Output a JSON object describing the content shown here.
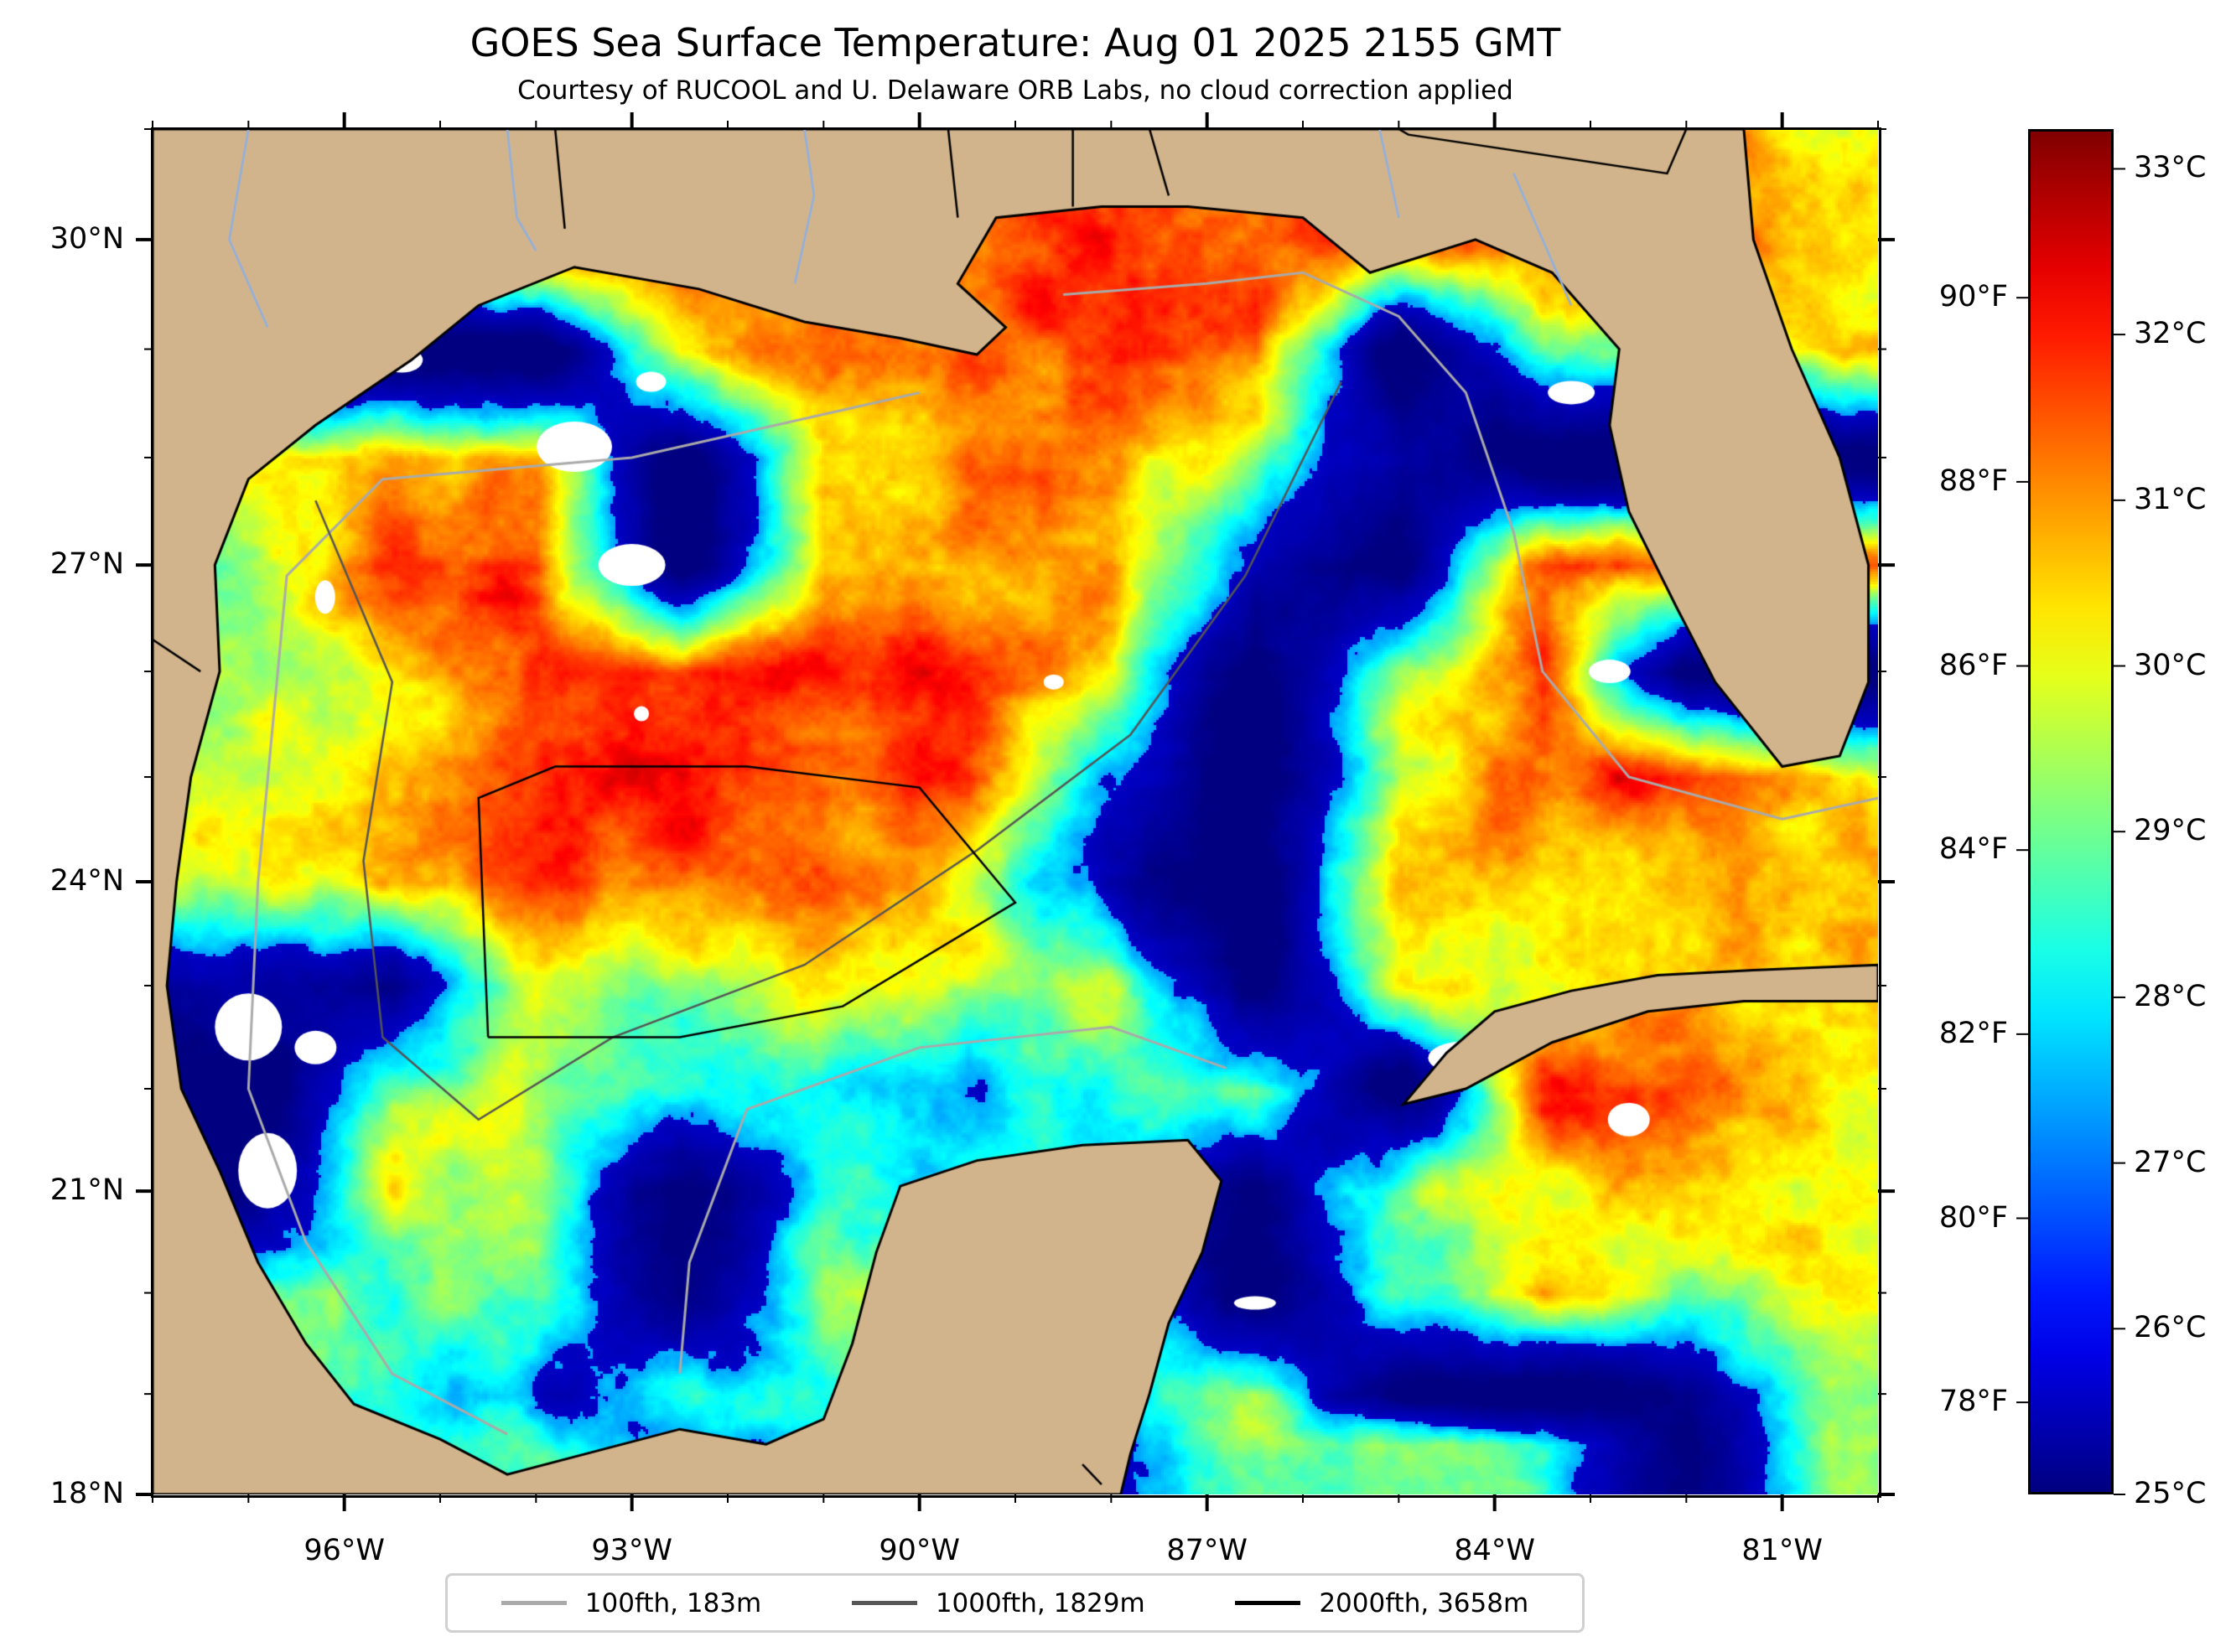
{
  "chart_data": {
    "type": "heatmap",
    "title": "GOES Sea Surface Temperature: Aug 01 2025 2155 GMT",
    "subtitle": "Courtesy of RUCOOL and U. Delaware ORB Labs, no cloud correction applied",
    "projection": "mercator",
    "lon_range": [
      -98,
      -80
    ],
    "lat_range": [
      18,
      31
    ],
    "x_ticks": [
      {
        "value": -96,
        "label": "96°W"
      },
      {
        "value": -93,
        "label": "93°W"
      },
      {
        "value": -90,
        "label": "90°W"
      },
      {
        "value": -87,
        "label": "87°W"
      },
      {
        "value": -84,
        "label": "84°W"
      },
      {
        "value": -81,
        "label": "81°W"
      }
    ],
    "y_ticks": [
      {
        "value": 30,
        "label": "30°N"
      },
      {
        "value": 27,
        "label": "27°N"
      },
      {
        "value": 24,
        "label": "24°N"
      },
      {
        "value": 21,
        "label": "21°N"
      },
      {
        "value": 18,
        "label": "18°N"
      }
    ],
    "colorbar": {
      "colormap": "jet",
      "range_c": [
        25,
        33.24
      ],
      "celsius_ticks": [
        {
          "value": 33,
          "label": "33°C"
        },
        {
          "value": 32,
          "label": "32°C"
        },
        {
          "value": 31,
          "label": "31°C"
        },
        {
          "value": 30,
          "label": "30°C"
        },
        {
          "value": 29,
          "label": "29°C"
        },
        {
          "value": 28,
          "label": "28°C"
        },
        {
          "value": 27,
          "label": "27°C"
        },
        {
          "value": 26,
          "label": "26°C"
        },
        {
          "value": 25,
          "label": "25°C"
        }
      ],
      "fahrenheit_ticks": [
        {
          "value": 90,
          "label": "90°F"
        },
        {
          "value": 88,
          "label": "88°F"
        },
        {
          "value": 86,
          "label": "86°F"
        },
        {
          "value": 84,
          "label": "84°F"
        },
        {
          "value": 82,
          "label": "82°F"
        },
        {
          "value": 80,
          "label": "80°F"
        },
        {
          "value": 78,
          "label": "78°F"
        }
      ]
    },
    "legend": {
      "placement": "bottom-center",
      "entries": [
        {
          "label": "100fth, 183m",
          "color": "#aaaaaa"
        },
        {
          "label": "1000fth, 1829m",
          "color": "#555555"
        },
        {
          "label": "2000fth, 3658m",
          "color": "#000000"
        }
      ]
    },
    "colors": {
      "land": "#d2b48c",
      "no_data": "#ffffff",
      "rivers": "#8fb0e0"
    },
    "sst_grid": {
      "units": "°C (null = land, \"cloud\" = no data)",
      "lons": [
        -97,
        -95.5,
        -94,
        -92.5,
        -91,
        -89.5,
        -88,
        -86.5,
        -85,
        -83.5,
        -82,
        -80.5
      ],
      "lats": [
        30,
        29,
        28,
        27,
        26,
        25,
        24,
        23,
        22,
        21,
        20,
        19,
        18.5
      ],
      "values": [
        [
          null,
          null,
          null,
          null,
          null,
          null,
          32.8,
          32.5,
          null,
          null,
          null,
          31
        ],
        [
          null,
          null,
          25,
          31.5,
          32,
          32,
          33,
          32.5,
          25,
          30,
          null,
          31.5
        ],
        [
          31,
          32,
          31.5,
          "cloud",
          31.5,
          32,
          32,
          30,
          27,
          25,
          null,
          null
        ],
        [
          30,
          33,
          32.5,
          "cloud",
          32,
          31.5,
          32,
          28,
          25,
          32.5,
          null,
          null
        ],
        [
          30.5,
          31,
          33,
          33,
          33,
          33,
          31,
          25,
          30,
          32.5,
          25,
          null
        ],
        [
          31,
          31.5,
          32.5,
          33,
          32.5,
          32.5,
          28,
          25,
          31,
          32.5,
          33,
          31
        ],
        [
          30.5,
          31.5,
          32.5,
          32.5,
          32.5,
          31,
          27,
          25,
          31.5,
          31.5,
          31.5,
          31.5
        ],
        [
          27,
          26,
          31,
          30,
          31,
          30.5,
          30.5,
          25,
          31,
          31,
          31.5,
          null
        ],
        [
          25,
          30,
          30.5,
          29,
          29,
          28.5,
          29.5,
          30,
          "cloud",
          33,
          33,
          31
        ],
        [
          26,
          31,
          30,
          25,
          29,
          null,
          null,
          26,
          30,
          31,
          31.5,
          31
        ],
        [
          30,
          29.5,
          30,
          25.5,
          30.5,
          null,
          null,
          25,
          29.5,
          31.5,
          30,
          31
        ],
        [
          null,
          29.5,
          28,
          29,
          null,
          null,
          null,
          30,
          25,
          25,
          26,
          30
        ],
        [
          null,
          null,
          29.5,
          28,
          null,
          null,
          null,
          30,
          30,
          29.5,
          25.5,
          30
        ]
      ]
    }
  }
}
